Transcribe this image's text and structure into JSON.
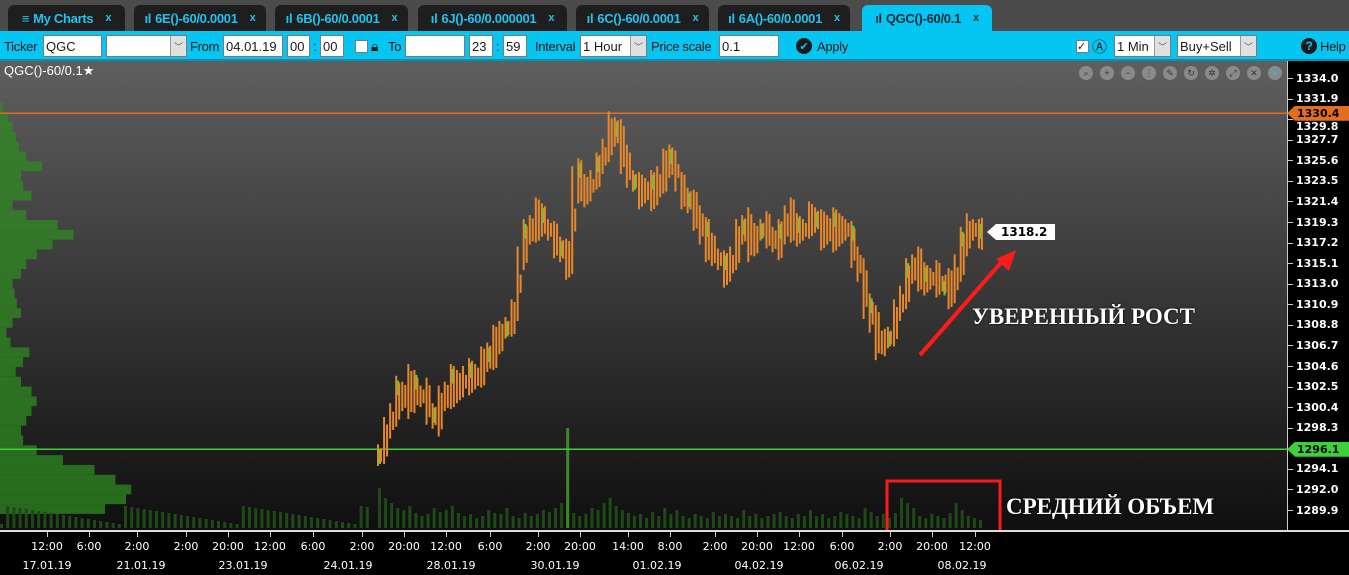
{
  "tabs": [
    {
      "label": "My Charts",
      "icon": "menu-icon",
      "active": false
    },
    {
      "label": "6E()-60/0.0001",
      "icon": "bar-chart-icon",
      "active": false
    },
    {
      "label": "6B()-60/0.0001",
      "icon": "bar-chart-icon",
      "active": false
    },
    {
      "label": "6J()-60/0.000001",
      "icon": "bar-chart-icon",
      "active": false
    },
    {
      "label": "6C()-60/0.0001",
      "icon": "bar-chart-icon",
      "active": false
    },
    {
      "label": "6A()-60/0.0001",
      "icon": "bar-chart-icon",
      "active": false
    },
    {
      "label": "QGC()-60/0.1",
      "icon": "bar-chart-icon",
      "active": true
    }
  ],
  "tab_close": "x",
  "toolbar": {
    "ticker_label": "Ticker",
    "ticker_value": "QGC",
    "ticker_select": "",
    "from_label": "From",
    "from_date": "04.01.19",
    "from_hour": "00",
    "from_min": "00",
    "to_label": "To",
    "to_date": "",
    "to_hour": "23",
    "to_min": "59",
    "colon": ":",
    "interval_label": "Interval",
    "interval_value": "1 Hour",
    "price_scale_label": "Price scale",
    "price_scale_value": "0.1",
    "apply_label": "Apply",
    "tf_value": "1 Min",
    "side_value": "Buy+Sell",
    "help_label": "Help"
  },
  "chart_title": "QGC()-60/0.1",
  "colors": {
    "accent": "#05c6f3",
    "bar": "#e8882a",
    "up": "#3ee03e",
    "resistance": "#e36d1f",
    "support": "#3ad13a",
    "annotation": "#ff1a1a"
  },
  "chart_data": {
    "type": "ohlc",
    "ylim": [
      1288.5,
      1334.6
    ],
    "price_ticks": [
      "1334.0",
      "1331.9",
      "1329.8",
      "1327.7",
      "1325.6",
      "1323.5",
      "1321.4",
      "1319.3",
      "1317.2",
      "1315.1",
      "1313.0",
      "1310.9",
      "1308.8",
      "1306.7",
      "1304.6",
      "1302.5",
      "1300.4",
      "1298.3",
      "1294.1",
      "1292.0",
      "1289.9"
    ],
    "time_ticks": [
      "12:00",
      "6:00",
      "2:00",
      "2:00",
      "20:00",
      "12:00",
      "6:00",
      "2:00",
      "20:00",
      "12:00",
      "6:00",
      "2:00",
      "20:00",
      "14:00",
      "8:00",
      "2:00",
      "20:00",
      "12:00",
      "6:00",
      "2:00",
      "20:00",
      "12:00"
    ],
    "date_ticks": [
      "17.01.19",
      "21.01.19",
      "23.01.19",
      "24.01.19",
      "28.01.19",
      "30.01.19",
      "01.02.19",
      "04.02.19",
      "06.02.19",
      "08.02.19"
    ],
    "closes": [
      1296,
      1298,
      1300,
      1302,
      1301,
      1303,
      1301,
      1302,
      1300,
      1299,
      1301,
      1302,
      1303,
      1302,
      1304,
      1303,
      1304,
      1305,
      1306,
      1307,
      1308,
      1309,
      1310,
      1316,
      1318,
      1319,
      1320,
      1319,
      1318,
      1317,
      1316,
      1315,
      1324,
      1323,
      1322,
      1324,
      1325,
      1327,
      1329,
      1328,
      1326,
      1324,
      1323,
      1322,
      1323,
      1322,
      1324,
      1325,
      1326,
      1323,
      1322,
      1321,
      1320,
      1318,
      1317,
      1316,
      1315,
      1314,
      1316,
      1318,
      1319,
      1317,
      1318,
      1319,
      1318,
      1317,
      1318,
      1320,
      1319,
      1318,
      1319,
      1320,
      1319,
      1318,
      1319,
      1318,
      1319,
      1318,
      1316,
      1314,
      1311,
      1309,
      1307,
      1307,
      1308,
      1310,
      1312,
      1314,
      1315,
      1314,
      1313,
      1314,
      1313,
      1313,
      1312,
      1315,
      1317,
      1319,
      1318,
      1318.2
    ],
    "volume": [
      40,
      30,
      25,
      20,
      18,
      22,
      15,
      12,
      14,
      20,
      16,
      18,
      22,
      15,
      12,
      14,
      10,
      12,
      18,
      15,
      14,
      20,
      12,
      10,
      15,
      12,
      14,
      18,
      16,
      20,
      25,
      100,
      15,
      12,
      14,
      20,
      18,
      25,
      30,
      22,
      18,
      15,
      12,
      14,
      10,
      16,
      12,
      20,
      14,
      18,
      12,
      10,
      14,
      12,
      10,
      16,
      12,
      14,
      12,
      10,
      18,
      12,
      14,
      10,
      12,
      14,
      16,
      12,
      10,
      14,
      12,
      18,
      12,
      14,
      10,
      12,
      16,
      14,
      12,
      10,
      20,
      16,
      12,
      14,
      10,
      15,
      30,
      25,
      20,
      12,
      10,
      14,
      12,
      10,
      15,
      25,
      18,
      12,
      10,
      8
    ],
    "volume_profile": {
      "top_price": 1331,
      "step": 1,
      "values": [
        3,
        8,
        12,
        15,
        18,
        25,
        40,
        20,
        22,
        30,
        12,
        25,
        55,
        70,
        50,
        35,
        25,
        20,
        12,
        14,
        16,
        20,
        12,
        6,
        10,
        28,
        22,
        15,
        20,
        30,
        35,
        30,
        25,
        20,
        22,
        35,
        60,
        90,
        110,
        125,
        120,
        100
      ]
    },
    "resistance": {
      "label": "1330.4",
      "value": 1330.4
    },
    "support": {
      "label": "1296.1",
      "value": 1296.1
    },
    "last_price": "1318.2"
  },
  "annotations": {
    "growth": "УВЕРЕННЫЙ РОСТ",
    "volume": "СРЕДНИЙ ОБЪЕМ"
  },
  "chart_controls": [
    "zoom-fit-icon",
    "zoom-in-icon",
    "zoom-out-icon",
    "grid-icon",
    "pencil-icon",
    "refresh-icon",
    "settings-icon",
    "expand-icon",
    "close-icon",
    "dropdown-icon"
  ]
}
